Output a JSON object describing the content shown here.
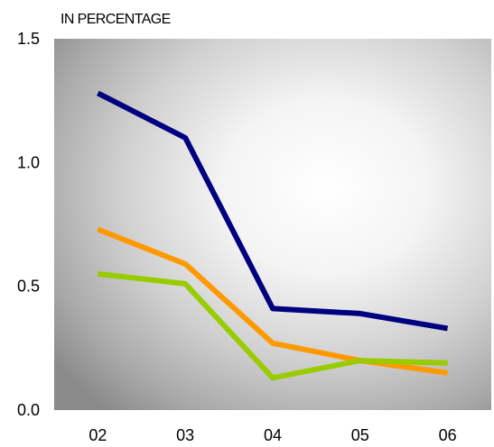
{
  "chart_data": {
    "type": "line",
    "title": "",
    "xlabel": "",
    "ylabel": "IN PERCENTAGE",
    "categories": [
      "02",
      "03",
      "04",
      "05",
      "06"
    ],
    "ylim": [
      0,
      1.5
    ],
    "yticks": [
      "0.0",
      "0.5",
      "1.0",
      "1.5"
    ],
    "ytick_values": [
      0,
      0.5,
      1.0,
      1.5
    ],
    "grid": false,
    "legend": "none",
    "series": [
      {
        "color": "#000080",
        "values": [
          1.28,
          1.1,
          0.41,
          0.39,
          0.33
        ]
      },
      {
        "color": "#ff9900",
        "values": [
          0.73,
          0.59,
          0.27,
          0.2,
          0.15
        ]
      },
      {
        "color": "#99cc00",
        "values": [
          0.55,
          0.51,
          0.13,
          0.2,
          0.19
        ]
      }
    ]
  }
}
